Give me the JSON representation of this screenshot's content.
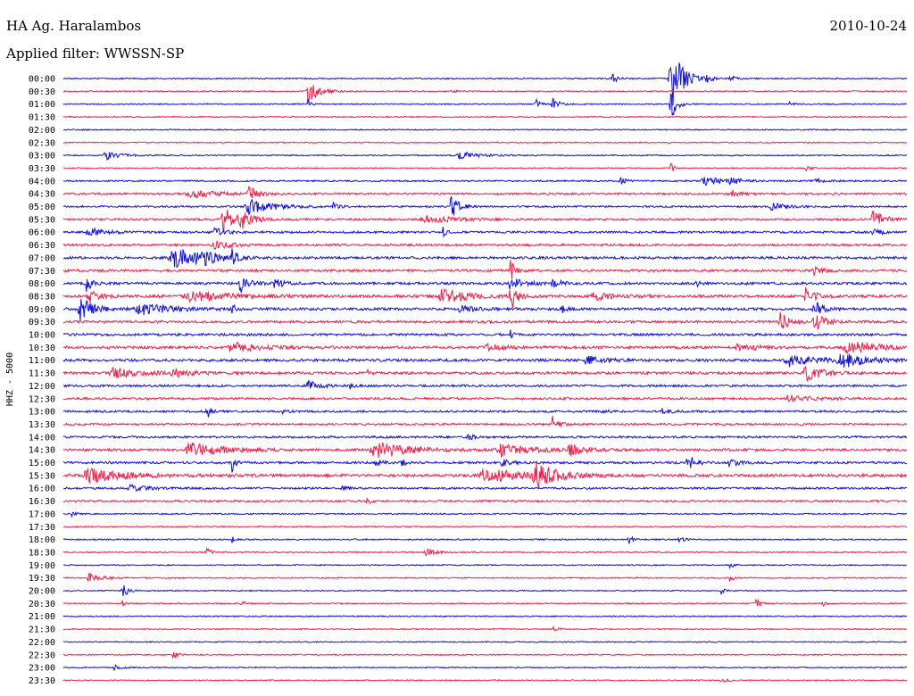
{
  "header": {
    "station": "HA Ag. Haralambos",
    "filter": "Applied filter: WWSSN-SP",
    "date": "2010-10-24"
  },
  "colors": {
    "even_trace": "#1010e0",
    "odd_trace": "#f0204a"
  },
  "chart_data": {
    "type": "line",
    "ylabel": "HHZ - 5000",
    "rows": [
      {
        "label": "00:00",
        "activity": 0.1,
        "events": [
          {
            "t": 0.65,
            "amp": 0.9,
            "w": 0.006
          },
          {
            "t": 0.72,
            "amp": 6.0,
            "w": 0.012
          },
          {
            "t": 0.76,
            "amp": 0.9,
            "w": 0.006
          },
          {
            "t": 0.79,
            "amp": 0.7,
            "w": 0.005
          }
        ]
      },
      {
        "label": "00:30",
        "activity": 0.1,
        "events": [
          {
            "t": 0.29,
            "amp": 1.9,
            "w": 0.012
          },
          {
            "t": 0.46,
            "amp": 0.3,
            "w": 0.005
          }
        ]
      },
      {
        "label": "01:00",
        "activity": 0.08,
        "events": [
          {
            "t": 0.29,
            "amp": 1.2,
            "w": 0.003
          },
          {
            "t": 0.56,
            "amp": 0.9,
            "w": 0.005
          },
          {
            "t": 0.58,
            "amp": 1.1,
            "w": 0.006
          },
          {
            "t": 0.72,
            "amp": 3.0,
            "w": 0.006
          },
          {
            "t": 0.86,
            "amp": 0.4,
            "w": 0.004
          }
        ]
      },
      {
        "label": "01:30",
        "activity": 0.08,
        "events": []
      },
      {
        "label": "02:00",
        "activity": 0.08,
        "events": []
      },
      {
        "label": "02:30",
        "activity": 0.08,
        "events": []
      },
      {
        "label": "03:00",
        "activity": 0.1,
        "events": [
          {
            "t": 0.05,
            "amp": 0.7,
            "w": 0.015
          },
          {
            "t": 0.47,
            "amp": 0.6,
            "w": 0.02
          }
        ]
      },
      {
        "label": "03:30",
        "activity": 0.08,
        "events": [
          {
            "t": 0.72,
            "amp": 1.0,
            "w": 0.003
          },
          {
            "t": 0.88,
            "amp": 0.5,
            "w": 0.005
          }
        ]
      },
      {
        "label": "04:00",
        "activity": 0.18,
        "events": [
          {
            "t": 0.66,
            "amp": 0.6,
            "w": 0.006
          },
          {
            "t": 0.76,
            "amp": 0.7,
            "w": 0.02
          },
          {
            "t": 0.79,
            "amp": 0.5,
            "w": 0.01
          },
          {
            "t": 0.89,
            "amp": 0.4,
            "w": 0.01
          }
        ]
      },
      {
        "label": "04:30",
        "activity": 0.28,
        "events": [
          {
            "t": 0.15,
            "amp": 0.6,
            "w": 0.03
          },
          {
            "t": 0.22,
            "amp": 1.2,
            "w": 0.01
          },
          {
            "t": 0.79,
            "amp": 0.5,
            "w": 0.01
          }
        ]
      },
      {
        "label": "05:00",
        "activity": 0.22,
        "events": [
          {
            "t": 0.22,
            "amp": 1.3,
            "w": 0.025
          },
          {
            "t": 0.32,
            "amp": 0.6,
            "w": 0.005
          },
          {
            "t": 0.46,
            "amp": 2.6,
            "w": 0.007
          },
          {
            "t": 0.84,
            "amp": 0.6,
            "w": 0.015
          }
        ]
      },
      {
        "label": "05:30",
        "activity": 0.28,
        "events": [
          {
            "t": 0.19,
            "amp": 2.1,
            "w": 0.015
          },
          {
            "t": 0.21,
            "amp": 1.6,
            "w": 0.01
          },
          {
            "t": 0.43,
            "amp": 0.6,
            "w": 0.03
          },
          {
            "t": 0.96,
            "amp": 1.5,
            "w": 0.012
          }
        ]
      },
      {
        "label": "06:00",
        "activity": 0.3,
        "events": [
          {
            "t": 0.03,
            "amp": 0.6,
            "w": 0.02
          },
          {
            "t": 0.18,
            "amp": 0.8,
            "w": 0.01
          },
          {
            "t": 0.45,
            "amp": 1.0,
            "w": 0.003
          },
          {
            "t": 0.96,
            "amp": 0.5,
            "w": 0.01
          }
        ]
      },
      {
        "label": "06:30",
        "activity": 0.34,
        "events": [
          {
            "t": 0.18,
            "amp": 0.6,
            "w": 0.02
          }
        ]
      },
      {
        "label": "07:00",
        "activity": 0.38,
        "events": [
          {
            "t": 0.13,
            "amp": 1.8,
            "w": 0.025
          },
          {
            "t": 0.16,
            "amp": 1.4,
            "w": 0.015
          },
          {
            "t": 0.2,
            "amp": 1.4,
            "w": 0.005
          }
        ]
      },
      {
        "label": "07:30",
        "activity": 0.36,
        "events": [
          {
            "t": 0.53,
            "amp": 1.6,
            "w": 0.006
          },
          {
            "t": 0.89,
            "amp": 0.6,
            "w": 0.01
          }
        ]
      },
      {
        "label": "08:00",
        "activity": 0.38,
        "events": [
          {
            "t": 0.025,
            "amp": 2.0,
            "w": 0.006
          },
          {
            "t": 0.21,
            "amp": 1.5,
            "w": 0.01
          },
          {
            "t": 0.25,
            "amp": 0.8,
            "w": 0.01
          },
          {
            "t": 0.53,
            "amp": 1.0,
            "w": 0.015
          },
          {
            "t": 0.58,
            "amp": 0.7,
            "w": 0.01
          },
          {
            "t": 0.75,
            "amp": 0.7,
            "w": 0.004
          }
        ]
      },
      {
        "label": "08:30",
        "activity": 0.45,
        "events": [
          {
            "t": 0.03,
            "amp": 1.2,
            "w": 0.01
          },
          {
            "t": 0.15,
            "amp": 0.9,
            "w": 0.04
          },
          {
            "t": 0.45,
            "amp": 1.2,
            "w": 0.025
          },
          {
            "t": 0.53,
            "amp": 2.5,
            "w": 0.007
          },
          {
            "t": 0.63,
            "amp": 0.6,
            "w": 0.02
          },
          {
            "t": 0.88,
            "amp": 1.2,
            "w": 0.01
          }
        ]
      },
      {
        "label": "09:00",
        "activity": 0.42,
        "events": [
          {
            "t": 0.02,
            "amp": 2.0,
            "w": 0.015
          },
          {
            "t": 0.09,
            "amp": 1.2,
            "w": 0.03
          },
          {
            "t": 0.2,
            "amp": 0.9,
            "w": 0.004
          },
          {
            "t": 0.47,
            "amp": 0.6,
            "w": 0.015
          },
          {
            "t": 0.59,
            "amp": 0.8,
            "w": 0.005
          },
          {
            "t": 0.89,
            "amp": 1.2,
            "w": 0.01
          }
        ]
      },
      {
        "label": "09:30",
        "activity": 0.4,
        "events": [
          {
            "t": 0.85,
            "amp": 1.5,
            "w": 0.01
          },
          {
            "t": 0.89,
            "amp": 1.8,
            "w": 0.01
          }
        ]
      },
      {
        "label": "10:00",
        "activity": 0.36,
        "events": [
          {
            "t": 0.53,
            "amp": 0.6,
            "w": 0.003
          }
        ]
      },
      {
        "label": "10:30",
        "activity": 0.4,
        "events": [
          {
            "t": 0.2,
            "amp": 0.8,
            "w": 0.03
          },
          {
            "t": 0.5,
            "amp": 0.6,
            "w": 0.02
          },
          {
            "t": 0.8,
            "amp": 0.6,
            "w": 0.02
          },
          {
            "t": 0.93,
            "amp": 1.2,
            "w": 0.03
          }
        ]
      },
      {
        "label": "11:00",
        "activity": 0.42,
        "events": [
          {
            "t": 0.62,
            "amp": 0.7,
            "w": 0.02
          },
          {
            "t": 0.86,
            "amp": 0.9,
            "w": 0.03
          },
          {
            "t": 0.92,
            "amp": 1.3,
            "w": 0.025
          }
        ]
      },
      {
        "label": "11:30",
        "activity": 0.4,
        "events": [
          {
            "t": 0.06,
            "amp": 0.8,
            "w": 0.03
          },
          {
            "t": 0.13,
            "amp": 0.6,
            "w": 0.02
          },
          {
            "t": 0.36,
            "amp": 0.5,
            "w": 0.005
          },
          {
            "t": 0.88,
            "amp": 1.8,
            "w": 0.015
          }
        ]
      },
      {
        "label": "12:00",
        "activity": 0.32,
        "events": [
          {
            "t": 0.29,
            "amp": 1.0,
            "w": 0.01
          },
          {
            "t": 0.34,
            "amp": 0.4,
            "w": 0.005
          }
        ]
      },
      {
        "label": "12:30",
        "activity": 0.34,
        "events": [
          {
            "t": 0.86,
            "amp": 0.6,
            "w": 0.02
          }
        ]
      },
      {
        "label": "13:00",
        "activity": 0.28,
        "events": [
          {
            "t": 0.17,
            "amp": 1.4,
            "w": 0.004
          },
          {
            "t": 0.26,
            "amp": 0.4,
            "w": 0.006
          },
          {
            "t": 0.64,
            "amp": 0.4,
            "w": 0.005
          },
          {
            "t": 0.71,
            "amp": 0.4,
            "w": 0.01
          }
        ]
      },
      {
        "label": "13:30",
        "activity": 0.28,
        "events": [
          {
            "t": 0.58,
            "amp": 1.2,
            "w": 0.006
          }
        ]
      },
      {
        "label": "14:00",
        "activity": 0.3,
        "events": [
          {
            "t": 0.48,
            "amp": 0.4,
            "w": 0.01
          }
        ]
      },
      {
        "label": "14:30",
        "activity": 0.4,
        "events": [
          {
            "t": 0.15,
            "amp": 1.1,
            "w": 0.035
          },
          {
            "t": 0.37,
            "amp": 1.3,
            "w": 0.035
          },
          {
            "t": 0.52,
            "amp": 1.0,
            "w": 0.03
          },
          {
            "t": 0.6,
            "amp": 0.9,
            "w": 0.015
          }
        ]
      },
      {
        "label": "15:00",
        "activity": 0.34,
        "events": [
          {
            "t": 0.2,
            "amp": 1.4,
            "w": 0.004
          },
          {
            "t": 0.37,
            "amp": 0.8,
            "w": 0.005
          },
          {
            "t": 0.4,
            "amp": 0.8,
            "w": 0.004
          },
          {
            "t": 0.52,
            "amp": 0.5,
            "w": 0.01
          },
          {
            "t": 0.74,
            "amp": 1.6,
            "w": 0.007
          },
          {
            "t": 0.79,
            "amp": 0.6,
            "w": 0.01
          }
        ]
      },
      {
        "label": "15:30",
        "activity": 0.48,
        "events": [
          {
            "t": 0.03,
            "amp": 1.3,
            "w": 0.035
          },
          {
            "t": 0.5,
            "amp": 1.1,
            "w": 0.04
          },
          {
            "t": 0.56,
            "amp": 2.0,
            "w": 0.02
          }
        ]
      },
      {
        "label": "16:00",
        "activity": 0.26,
        "events": [
          {
            "t": 0.08,
            "amp": 0.5,
            "w": 0.02
          },
          {
            "t": 0.33,
            "amp": 0.4,
            "w": 0.005
          }
        ]
      },
      {
        "label": "16:30",
        "activity": 0.26,
        "events": [
          {
            "t": 0.36,
            "amp": 0.5,
            "w": 0.006
          }
        ]
      },
      {
        "label": "17:00",
        "activity": 0.12,
        "events": [
          {
            "t": 0.01,
            "amp": 0.6,
            "w": 0.004
          }
        ]
      },
      {
        "label": "17:30",
        "activity": 0.1,
        "events": []
      },
      {
        "label": "18:00",
        "activity": 0.12,
        "events": [
          {
            "t": 0.2,
            "amp": 0.5,
            "w": 0.003
          },
          {
            "t": 0.67,
            "amp": 0.7,
            "w": 0.005
          },
          {
            "t": 0.73,
            "amp": 0.5,
            "w": 0.005
          }
        ]
      },
      {
        "label": "18:30",
        "activity": 0.12,
        "events": [
          {
            "t": 0.17,
            "amp": 0.9,
            "w": 0.004
          },
          {
            "t": 0.43,
            "amp": 0.6,
            "w": 0.01
          }
        ]
      },
      {
        "label": "19:00",
        "activity": 0.1,
        "events": [
          {
            "t": 0.79,
            "amp": 0.9,
            "w": 0.003
          }
        ]
      },
      {
        "label": "19:30",
        "activity": 0.1,
        "events": [
          {
            "t": 0.03,
            "amp": 0.8,
            "w": 0.012
          },
          {
            "t": 0.79,
            "amp": 0.6,
            "w": 0.004
          }
        ]
      },
      {
        "label": "20:00",
        "activity": 0.08,
        "events": [
          {
            "t": 0.07,
            "amp": 1.2,
            "w": 0.006
          },
          {
            "t": 0.78,
            "amp": 0.6,
            "w": 0.003
          }
        ]
      },
      {
        "label": "20:30",
        "activity": 0.1,
        "events": [
          {
            "t": 0.07,
            "amp": 0.5,
            "w": 0.004
          },
          {
            "t": 0.21,
            "amp": 0.5,
            "w": 0.005
          },
          {
            "t": 0.82,
            "amp": 1.0,
            "w": 0.005
          },
          {
            "t": 0.9,
            "amp": 0.5,
            "w": 0.004
          }
        ]
      },
      {
        "label": "21:00",
        "activity": 0.1,
        "events": []
      },
      {
        "label": "21:30",
        "activity": 0.08,
        "events": [
          {
            "t": 0.58,
            "amp": 0.4,
            "w": 0.005
          }
        ]
      },
      {
        "label": "22:00",
        "activity": 0.08,
        "events": []
      },
      {
        "label": "22:30",
        "activity": 0.1,
        "events": [
          {
            "t": 0.13,
            "amp": 0.6,
            "w": 0.006
          }
        ]
      },
      {
        "label": "23:00",
        "activity": 0.08,
        "events": [
          {
            "t": 0.06,
            "amp": 0.4,
            "w": 0.008
          }
        ]
      },
      {
        "label": "23:30",
        "activity": 0.08,
        "events": [
          {
            "t": 0.78,
            "amp": 0.3,
            "w": 0.01
          }
        ]
      }
    ]
  }
}
